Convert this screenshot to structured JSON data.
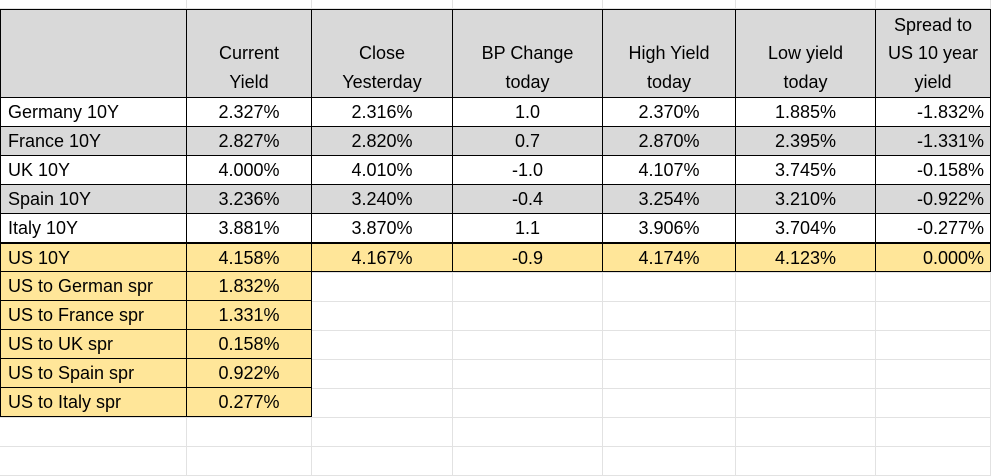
{
  "colors": {
    "header_bg": "#d9d9d9",
    "gray_row_bg": "#d9d9d9",
    "highlight_bg": "#ffe699",
    "grid_line": "#e2e2e2",
    "border": "#000000"
  },
  "table": {
    "headers": [
      "",
      "Current\nYield",
      "Close\nYesterday",
      "BP Change\ntoday",
      "High Yield\ntoday",
      "Low yield\ntoday",
      "Spread to\nUS 10 year\nyield"
    ],
    "rows": [
      {
        "name": "Germany 10Y",
        "values": [
          "2.327%",
          "2.316%",
          "1.0",
          "2.370%",
          "1.885%",
          "-1.832%"
        ],
        "shaded": false
      },
      {
        "name": "France 10Y",
        "values": [
          "2.827%",
          "2.820%",
          "0.7",
          "2.870%",
          "2.395%",
          "-1.331%"
        ],
        "shaded": true
      },
      {
        "name": "UK 10Y",
        "values": [
          "4.000%",
          "4.010%",
          "-1.0",
          "4.107%",
          "3.745%",
          "-0.158%"
        ],
        "shaded": false
      },
      {
        "name": "Spain 10Y",
        "values": [
          "3.236%",
          "3.240%",
          "-0.4",
          "3.254%",
          "3.210%",
          "-0.922%"
        ],
        "shaded": true
      },
      {
        "name": "Italy 10Y",
        "values": [
          "3.881%",
          "3.870%",
          "1.1",
          "3.906%",
          "3.704%",
          "-0.277%"
        ],
        "shaded": false
      },
      {
        "name": "US 10Y",
        "values": [
          "4.158%",
          "4.167%",
          "-0.9",
          "4.174%",
          "4.123%",
          "0.000%"
        ],
        "shaded": false,
        "highlight": true
      }
    ],
    "spreads": [
      {
        "name": "US to German spr",
        "value": "1.832%"
      },
      {
        "name": "US to France spr",
        "value": "1.331%"
      },
      {
        "name": "US to UK spr",
        "value": "0.158%"
      },
      {
        "name": "US to Spain spr",
        "value": "0.922%"
      },
      {
        "name": "US to Italy spr",
        "value": "0.277%"
      }
    ]
  }
}
